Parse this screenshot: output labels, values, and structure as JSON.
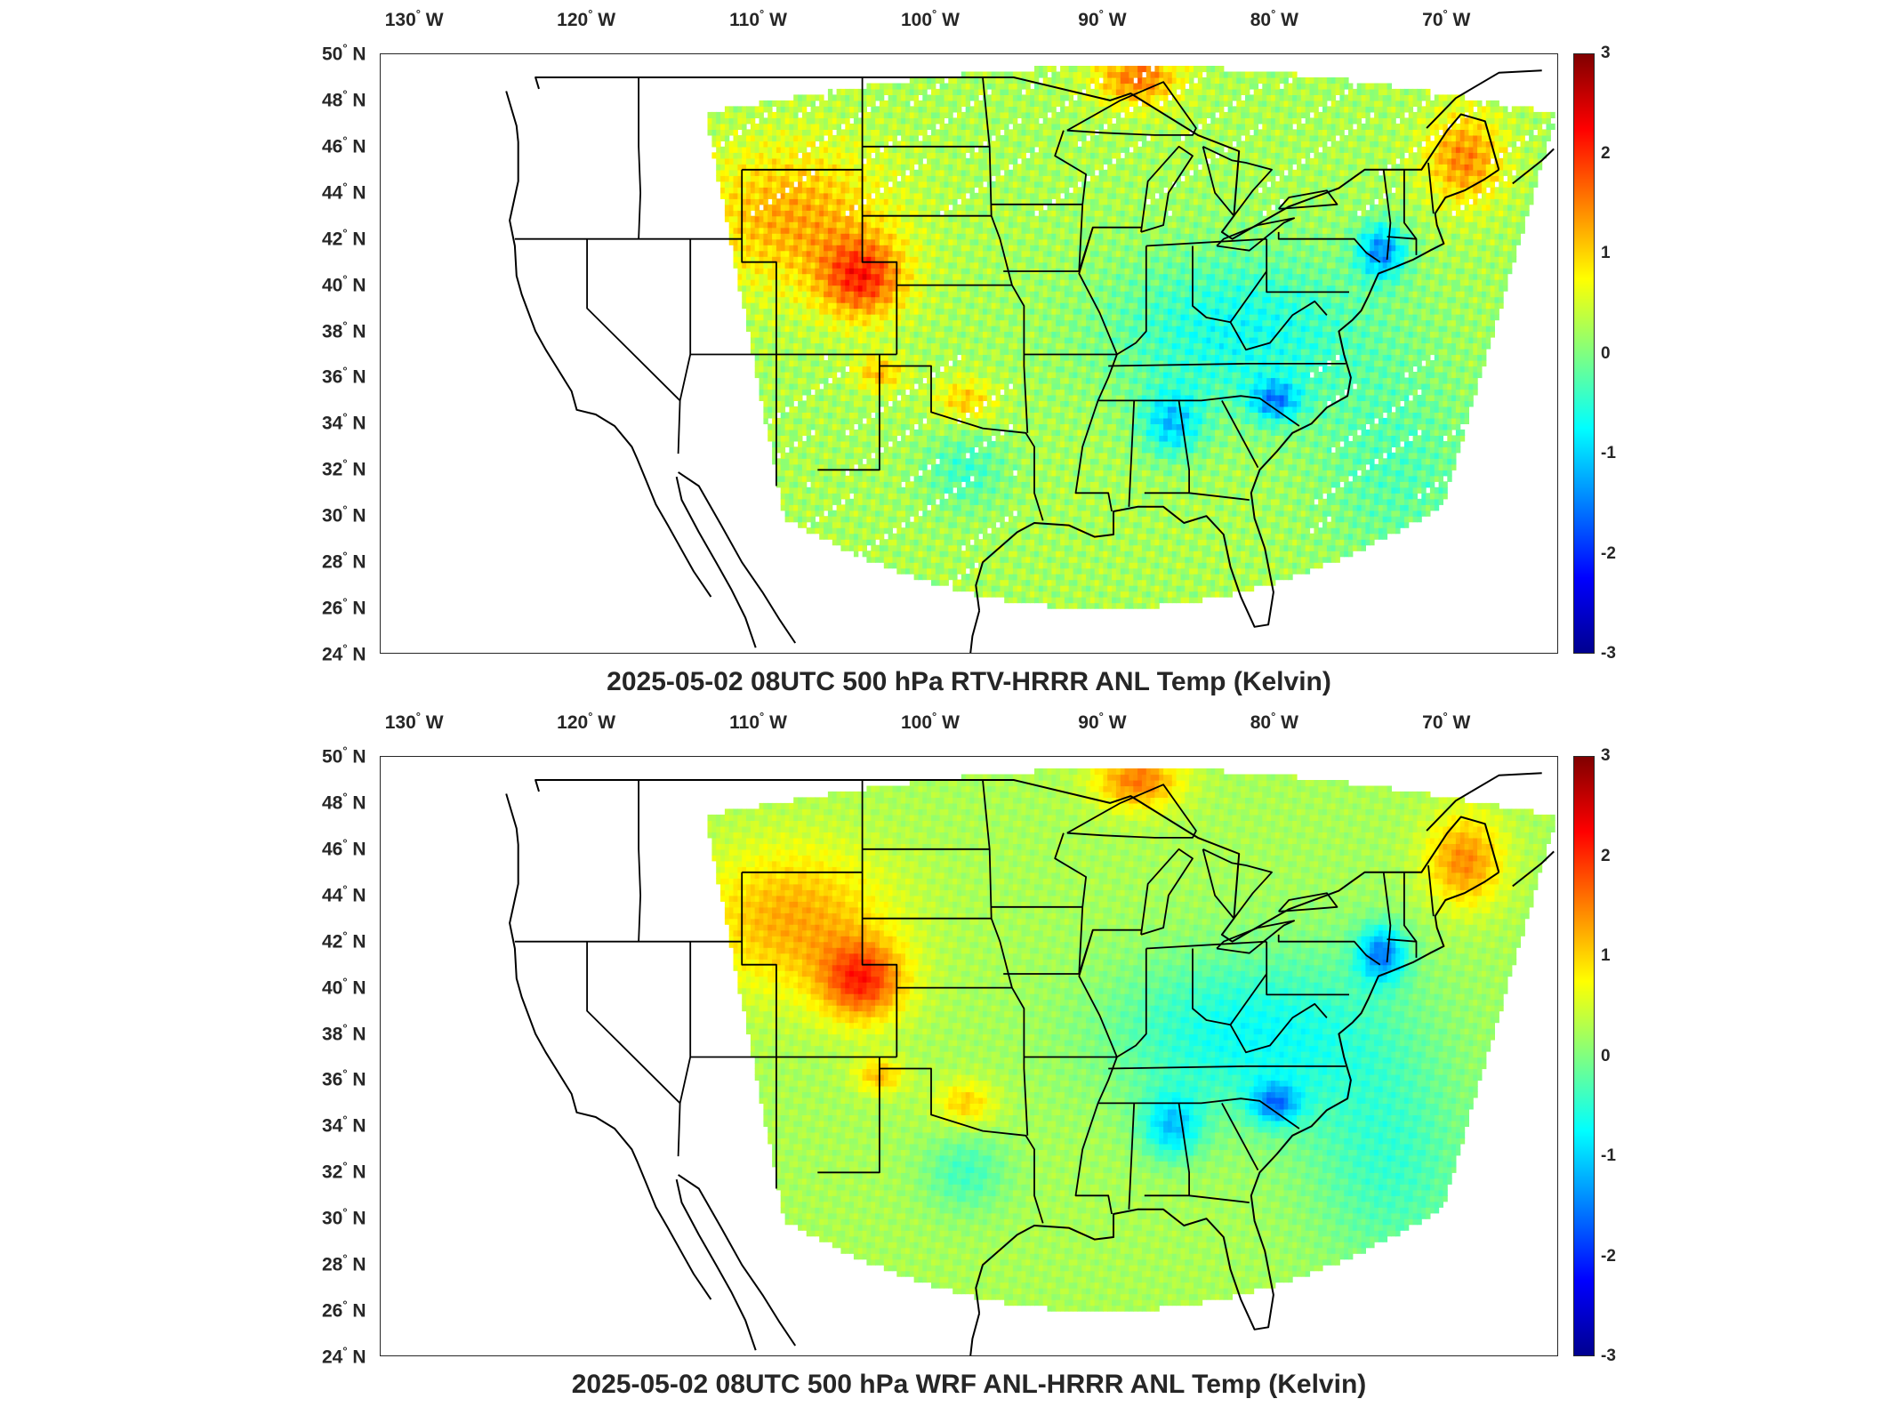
{
  "figure": {
    "panels": [
      {
        "title": "2025-05-02 08UTC 500 hPa RTV-HRRR ANL Temp (Kelvin)",
        "variant": "rtv"
      },
      {
        "title": "2025-05-02 08UTC 500 hPa WRF ANL-HRRR ANL Temp (Kelvin)",
        "variant": "wrf"
      }
    ],
    "lon_ticks": [
      "130",
      "120",
      "110",
      "100",
      "90",
      "80",
      "70"
    ],
    "lon_hemisphere": "W",
    "lat_ticks": [
      "50",
      "48",
      "46",
      "44",
      "42",
      "40",
      "38",
      "36",
      "34",
      "32",
      "30",
      "28",
      "26",
      "24"
    ],
    "lat_hemisphere": "N",
    "degree_symbol": "°",
    "colorbar_ticks": [
      "3",
      "2",
      "1",
      "0",
      "-1",
      "-2",
      "-3"
    ],
    "colorbar_range": [
      -3,
      3
    ],
    "colormap": "jet",
    "colors": {
      "jet": [
        "#00008f",
        "#0000ff",
        "#0080ff",
        "#00ffff",
        "#80ff80",
        "#ffff00",
        "#ff8000",
        "#ff0000",
        "#800000"
      ],
      "border": "#000000",
      "frame": "#262626"
    },
    "map_extent": {
      "lon": [
        -132,
        -63.5
      ],
      "lat": [
        24,
        50
      ]
    }
  }
}
